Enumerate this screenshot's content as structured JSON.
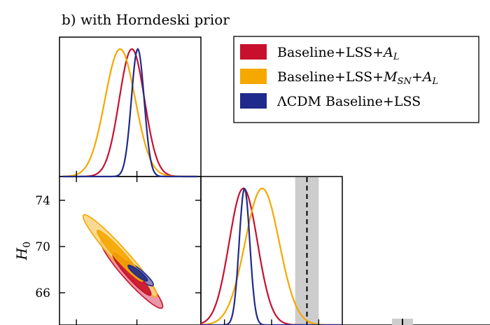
{
  "chart_data": {
    "type": "corner-plot",
    "title": "b) with Horndeski prior",
    "legend": {
      "placement": "top-right",
      "entries": [
        {
          "label": "Baseline+LSS+A_L",
          "color": "#C8102E"
        },
        {
          "label": "Baseline+LSS+M_SN+A_L",
          "color": "#F5A800"
        },
        {
          "label": "ΛCDM Baseline+LSS",
          "color": "#1F2A8C"
        }
      ]
    },
    "h0_axis": {
      "label": "H_0",
      "ylim": [
        64,
        76
      ],
      "ticks": [
        66,
        70,
        74
      ],
      "tick_labels": [
        "66",
        "70",
        "74"
      ]
    },
    "param1_marginal": {
      "xlim": [
        -4,
        4
      ],
      "series": [
        {
          "name": "Baseline+LSS+A_L",
          "color": "#C8102E",
          "mean": 0.1,
          "sigma": 0.75
        },
        {
          "name": "Baseline+LSS+M_SN+A_L",
          "color": "#F5A800",
          "mean": -0.6,
          "sigma": 0.9
        },
        {
          "name": "ΛCDM Baseline+LSS",
          "color": "#1F2A8C",
          "mean": 0.45,
          "sigma": 0.38
        }
      ]
    },
    "h0_marginal": {
      "xlim": [
        64,
        76
      ],
      "series": [
        {
          "name": "Baseline+LSS+A_L",
          "color": "#C8102E",
          "mean": 67.6,
          "sigma": 1.2
        },
        {
          "name": "Baseline+LSS+M_SN+A_L",
          "color": "#F5A800",
          "mean": 69.2,
          "sigma": 1.45
        },
        {
          "name": "ΛCDM Baseline+LSS",
          "color": "#1F2A8C",
          "mean": 67.7,
          "sigma": 0.45
        }
      ],
      "reference": {
        "value": 73.0,
        "sigma": 1.0,
        "band_color": "#CDCDCD"
      }
    },
    "joint_2d": {
      "xlim": [
        -4,
        4
      ],
      "ylim": [
        64,
        76
      ],
      "series": [
        {
          "name": "Baseline+LSS+A_L",
          "color": "#C8102E",
          "fill": "#E58698",
          "center": [
            0.1,
            67.6
          ],
          "sd": [
            0.75,
            1.2
          ],
          "rho": -0.94
        },
        {
          "name": "Baseline+LSS+M_SN+A_L",
          "color": "#F5A800",
          "fill": "#F9D380",
          "center": [
            -0.6,
            69.2
          ],
          "sd": [
            0.9,
            1.45
          ],
          "rho": -0.96
        },
        {
          "name": "ΛCDM Baseline+LSS",
          "color": "#1F2A8C",
          "fill": "#7A82C4",
          "center": [
            0.45,
            67.7
          ],
          "sd": [
            0.38,
            0.45
          ],
          "rho": -0.9
        }
      ]
    }
  }
}
